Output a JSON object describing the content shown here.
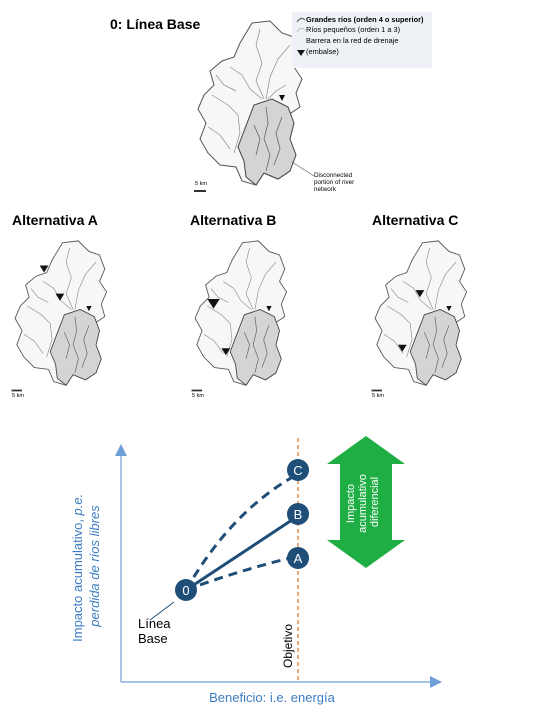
{
  "baseline": {
    "title": "0: Línea Base",
    "legend": {
      "rows": [
        "Grandes ríos (orden 4 o superior)",
        "Ríos pequeños (orden 1 a 3)",
        "Barrera en la red de drenaje",
        "(embalse)"
      ]
    },
    "scale_label": "5 km",
    "disconnected_note": [
      "Disconnected",
      "portion of river",
      "network"
    ]
  },
  "alternatives": [
    {
      "title": "Alternativa A",
      "scale_label": "5 km"
    },
    {
      "title": "Alternativa B",
      "scale_label": "5 km"
    },
    {
      "title": "Alternativa C",
      "scale_label": "5 km"
    }
  ],
  "chart": {
    "y_axis_label_prefix": "Impacto acumulativo, ",
    "y_axis_label_italic": "p.e.",
    "y_axis_label_line2": "perdida de ríos libres",
    "x_axis_label": "Beneficio: i.e. energía",
    "objective_label": "Objetivo",
    "baseline_label": [
      "Línea",
      "Base"
    ],
    "nodes": {
      "origin": "0",
      "a": "A",
      "b": "B",
      "c": "C"
    },
    "arrow_label": [
      "Impacto",
      "acumulativo",
      "diferencial"
    ],
    "colors": {
      "axis": "#6f9fd8",
      "node": "#1f4e79",
      "arrow": "#1fae44",
      "objective": "#e07b2a",
      "axis_text": "#3c7cc2"
    }
  }
}
